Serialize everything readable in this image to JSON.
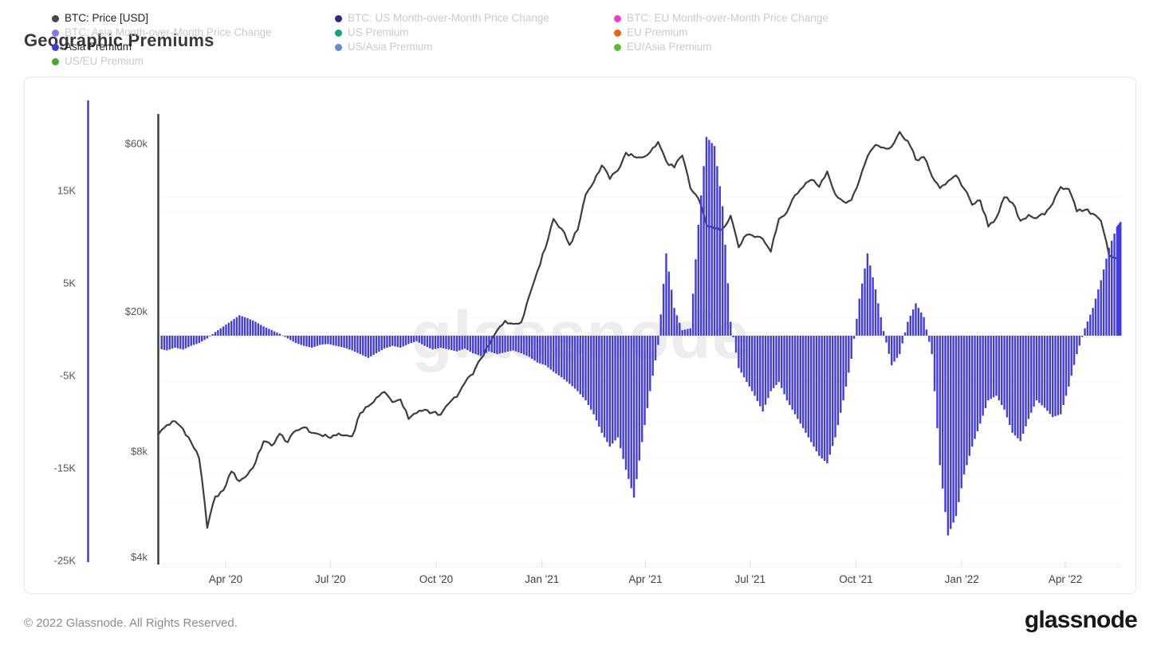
{
  "title": "Geographic Premiums",
  "watermark": "glassnode",
  "footer": {
    "copyright": "© 2022 Glassnode. All Rights Reserved.",
    "logo_text": "glassnode"
  },
  "legend": {
    "columns": [
      [
        {
          "label": "BTC: Price [USD]",
          "color": "#464646",
          "active": true
        },
        {
          "label": "BTC: Asia Month-over-Month Price Change",
          "color": "#8677f2",
          "active": false
        },
        {
          "label": "Asia Premium",
          "color": "#423CE0",
          "active": true
        },
        {
          "label": "US/EU Premium",
          "color": "#43ad2c",
          "active": false
        }
      ],
      [
        {
          "label": "BTC: US Month-over-Month Price Change",
          "color": "#2c2a84",
          "active": false
        },
        {
          "label": "US Premium",
          "color": "#0ca678",
          "active": false
        },
        {
          "label": "US/Asia Premium",
          "color": "#5d8bd4",
          "active": false
        }
      ],
      [
        {
          "label": "BTC: EU Month-over-Month Price Change",
          "color": "#f03ec8",
          "active": false
        },
        {
          "label": "EU Premium",
          "color": "#e96410",
          "active": false
        },
        {
          "label": "EU/Asia Premium",
          "color": "#54c02a",
          "active": false
        }
      ]
    ]
  },
  "chart_data": {
    "type": "mixed",
    "title": "Geographic Premiums",
    "legend_position": "top",
    "grid": true,
    "x_axis": {
      "ticks": [
        {
          "label": "Apr '20",
          "date": "2020-04-01"
        },
        {
          "label": "Jul '20",
          "date": "2020-07-01"
        },
        {
          "label": "Oct '20",
          "date": "2020-10-01"
        },
        {
          "label": "Jan '21",
          "date": "2021-01-01"
        },
        {
          "label": "Apr '21",
          "date": "2021-04-01"
        },
        {
          "label": "Jul '21",
          "date": "2021-07-01"
        },
        {
          "label": "Oct '21",
          "date": "2021-10-01"
        },
        {
          "label": "Jan '22",
          "date": "2022-01-01"
        },
        {
          "label": "Apr '22",
          "date": "2022-04-01"
        }
      ],
      "range": [
        "2020-02-03",
        "2022-05-19"
      ]
    },
    "y_axis_premium": {
      "side": "left-outer",
      "color": "#423CE0",
      "scale": "linear",
      "ticks": [
        "15K",
        "5K",
        "-5K",
        "-15K",
        "-25K"
      ],
      "tick_values": [
        15000,
        5000,
        -5000,
        -15000,
        -25000
      ],
      "range": [
        -25000,
        25500
      ]
    },
    "y_axis_price": {
      "side": "left-inner",
      "color": "#3d3d3d",
      "scale": "log",
      "ticks": [
        "$60k",
        "$20k",
        "$8k",
        "$4k"
      ],
      "tick_values": [
        60000,
        20000,
        8000,
        4000
      ],
      "gridline_values": [
        60000,
        40000,
        20000,
        10000,
        8000,
        6000,
        4000
      ],
      "range": [
        3800,
        68000
      ]
    },
    "dates": [
      "2020-02-03",
      "2020-02-10",
      "2020-02-17",
      "2020-02-24",
      "2020-03-02",
      "2020-03-09",
      "2020-03-16",
      "2020-03-23",
      "2020-03-30",
      "2020-04-06",
      "2020-04-13",
      "2020-04-20",
      "2020-04-27",
      "2020-05-04",
      "2020-05-11",
      "2020-05-18",
      "2020-05-25",
      "2020-06-01",
      "2020-06-08",
      "2020-06-15",
      "2020-06-22",
      "2020-06-29",
      "2020-07-06",
      "2020-07-13",
      "2020-07-20",
      "2020-07-27",
      "2020-08-03",
      "2020-08-10",
      "2020-08-17",
      "2020-08-24",
      "2020-08-31",
      "2020-09-07",
      "2020-09-14",
      "2020-09-21",
      "2020-09-28",
      "2020-10-05",
      "2020-10-12",
      "2020-10-19",
      "2020-10-26",
      "2020-11-02",
      "2020-11-09",
      "2020-11-16",
      "2020-11-23",
      "2020-11-30",
      "2020-12-07",
      "2020-12-14",
      "2020-12-21",
      "2020-12-28",
      "2021-01-04",
      "2021-01-11",
      "2021-01-18",
      "2021-01-25",
      "2021-02-01",
      "2021-02-08",
      "2021-02-15",
      "2021-02-22",
      "2021-03-01",
      "2021-03-08",
      "2021-03-15",
      "2021-03-22",
      "2021-03-29",
      "2021-04-05",
      "2021-04-12",
      "2021-04-19",
      "2021-04-26",
      "2021-05-03",
      "2021-05-10",
      "2021-05-17",
      "2021-05-24",
      "2021-05-31",
      "2021-06-07",
      "2021-06-14",
      "2021-06-21",
      "2021-06-28",
      "2021-07-05",
      "2021-07-12",
      "2021-07-19",
      "2021-07-26",
      "2021-08-02",
      "2021-08-09",
      "2021-08-16",
      "2021-08-23",
      "2021-08-30",
      "2021-09-06",
      "2021-09-13",
      "2021-09-20",
      "2021-09-27",
      "2021-10-04",
      "2021-10-11",
      "2021-10-18",
      "2021-10-25",
      "2021-11-01",
      "2021-11-08",
      "2021-11-15",
      "2021-11-22",
      "2021-11-29",
      "2021-12-06",
      "2021-12-13",
      "2021-12-20",
      "2021-12-27",
      "2022-01-03",
      "2022-01-10",
      "2022-01-17",
      "2022-01-24",
      "2022-01-31",
      "2022-02-07",
      "2022-02-14",
      "2022-02-21",
      "2022-02-28",
      "2022-03-07",
      "2022-03-14",
      "2022-03-21",
      "2022-03-28",
      "2022-04-04",
      "2022-04-11",
      "2022-04-18",
      "2022-04-25",
      "2022-05-02",
      "2022-05-09",
      "2022-05-16",
      "2022-05-19"
    ],
    "series": [
      {
        "name": "BTC: Price [USD]",
        "type": "line",
        "color": "#3d3d3d",
        "axis": "y_axis_price",
        "unit": "USD",
        "values": [
          9350,
          9900,
          10150,
          9650,
          8850,
          7950,
          5050,
          6200,
          6450,
          7300,
          6850,
          7150,
          7750,
          8900,
          8650,
          9350,
          8850,
          9550,
          9750,
          9400,
          9300,
          9150,
          9250,
          9250,
          9200,
          10700,
          11200,
          11850,
          12300,
          11500,
          11700,
          10300,
          10700,
          10950,
          10750,
          10600,
          11400,
          11900,
          13050,
          13800,
          15300,
          16700,
          18400,
          19600,
          19200,
          19400,
          23100,
          27100,
          31500,
          38200,
          35800,
          32200,
          35500,
          44800,
          48600,
          54200,
          49600,
          52400,
          58900,
          57400,
          57100,
          59100,
          63200,
          55700,
          53500,
          57800,
          46700,
          43600,
          36700,
          35700,
          35800,
          39000,
          31700,
          34400,
          33900,
          33500,
          30800,
          38200,
          39900,
          44600,
          47000,
          49300,
          47100,
          52100,
          44900,
          42800,
          43200,
          49200,
          57500,
          62000,
          60900,
          61300,
          67500,
          63600,
          56300,
          57300,
          50500,
          46700,
          48900,
          50800,
          46500,
          41900,
          43100,
          36300,
          38500,
          44000,
          42400,
          37700,
          39200,
          38400,
          39300,
          42200,
          47100,
          46400,
          40100,
          40500,
          39500,
          37700,
          30100,
          29500,
          30200
        ]
      },
      {
        "name": "Asia Premium",
        "type": "bar",
        "color": "#423CE0",
        "axis": "y_axis_premium",
        "unit": "USD",
        "values": [
          -1400,
          -1600,
          -1300,
          -1500,
          -1100,
          -800,
          -300,
          400,
          1000,
          1600,
          2200,
          1900,
          1500,
          1000,
          600,
          200,
          -300,
          -800,
          -1100,
          -1300,
          -1000,
          -900,
          -1100,
          -1300,
          -1600,
          -2000,
          -2400,
          -1900,
          -1400,
          -1100,
          -1300,
          -900,
          -600,
          -1100,
          -1500,
          -1300,
          -1500,
          -1700,
          -1400,
          -1900,
          -2200,
          -1700,
          -2000,
          -1800,
          -1600,
          -1900,
          -2300,
          -2900,
          -3200,
          -3900,
          -4500,
          -5200,
          -6000,
          -7000,
          -8500,
          -10500,
          -12000,
          -11000,
          -14500,
          -17500,
          -11500,
          -6000,
          -1000,
          8900,
          3000,
          600,
          800,
          12000,
          21500,
          20500,
          14000,
          1500,
          -3500,
          -5000,
          -6500,
          -8200,
          -6000,
          -5000,
          -7000,
          -8500,
          -10000,
          -11500,
          -13000,
          -13800,
          -11000,
          -7000,
          -2500,
          4000,
          8900,
          5000,
          500,
          -3200,
          -2000,
          1500,
          3500,
          2000,
          -2000,
          -14000,
          -21600,
          -19500,
          -15000,
          -12000,
          -9500,
          -7000,
          -6500,
          -8000,
          -10500,
          -11400,
          -9000,
          -7000,
          -7800,
          -8800,
          -8500,
          -5500,
          -2000,
          800,
          3000,
          6000,
          9500,
          11800,
          12300
        ]
      }
    ]
  }
}
